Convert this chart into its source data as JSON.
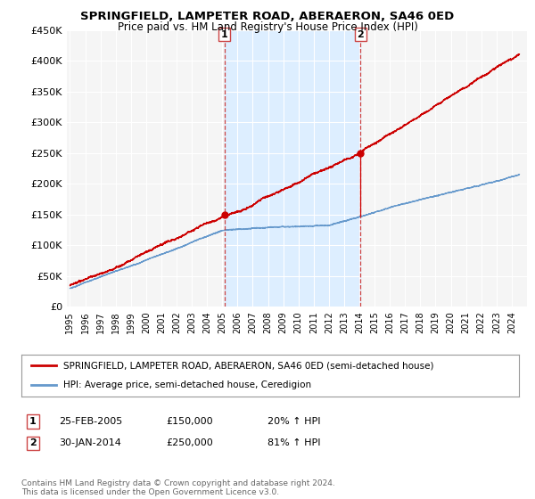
{
  "title": "SPRINGFIELD, LAMPETER ROAD, ABERAERON, SA46 0ED",
  "subtitle": "Price paid vs. HM Land Registry's House Price Index (HPI)",
  "red_legend": "SPRINGFIELD, LAMPETER ROAD, ABERAERON, SA46 0ED (semi-detached house)",
  "blue_legend": "HPI: Average price, semi-detached house, Ceredigion",
  "marker1_date": "25-FEB-2005",
  "marker1_price": "£150,000",
  "marker1_hpi": "20% ↑ HPI",
  "marker2_date": "30-JAN-2014",
  "marker2_price": "£250,000",
  "marker2_hpi": "81% ↑ HPI",
  "footer": "Contains HM Land Registry data © Crown copyright and database right 2024.\nThis data is licensed under the Open Government Licence v3.0.",
  "ylim": [
    0,
    450000
  ],
  "yticks": [
    0,
    50000,
    100000,
    150000,
    200000,
    250000,
    300000,
    350000,
    400000,
    450000
  ],
  "ytick_labels": [
    "£0",
    "£50K",
    "£100K",
    "£150K",
    "£200K",
    "£250K",
    "£300K",
    "£350K",
    "£400K",
    "£450K"
  ],
  "background_color": "#ffffff",
  "plot_bg_color": "#f5f5f5",
  "grid_color": "#dddddd",
  "highlight_color": "#ddeeff",
  "red_color": "#cc0000",
  "blue_color": "#6699cc",
  "marker1_x": 2005.15,
  "marker2_x": 2014.08,
  "marker1_y_red": 150000,
  "marker2_y_red": 250000,
  "xmin": 1995,
  "xmax": 2024.5
}
